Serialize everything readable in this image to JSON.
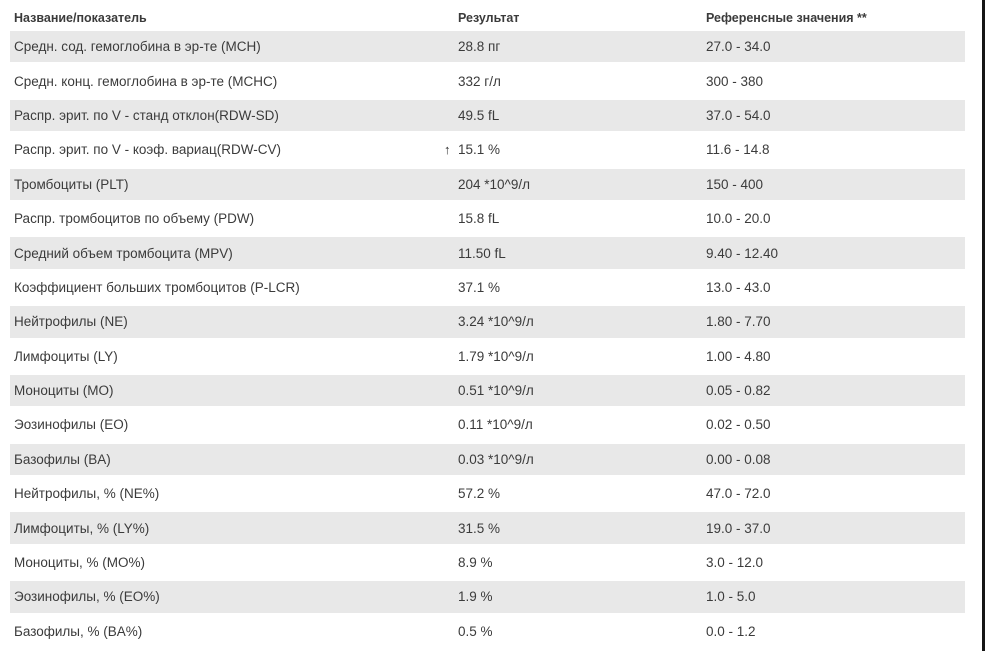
{
  "table": {
    "columns": [
      {
        "label": "Название/показатель"
      },
      {
        "label": "Результат"
      },
      {
        "label": "Референсные значения **"
      }
    ],
    "rows": [
      {
        "name": "Средн. сод. гемоглобина в эр-те (MCH)",
        "result": "28.8 пг",
        "reference": "27.0 - 34.0",
        "flag": ""
      },
      {
        "name": "Средн. конц. гемоглобина в эр-те (MCHC)",
        "result": "332 г/л",
        "reference": "300 - 380",
        "flag": ""
      },
      {
        "name": "Распр. эрит. по V - станд отклон(RDW-SD)",
        "result": "49.5 fL",
        "reference": "37.0 - 54.0",
        "flag": ""
      },
      {
        "name": "Распр. эрит. по V - коэф. вариац(RDW-CV)",
        "result": "15.1 %",
        "reference": "11.6 - 14.8",
        "flag": "↑"
      },
      {
        "name": "Тромбоциты (PLT)",
        "result": "204 *10^9/л",
        "reference": "150 - 400",
        "flag": ""
      },
      {
        "name": "Распр. тромбоцитов по объему (PDW)",
        "result": "15.8 fL",
        "reference": "10.0 - 20.0",
        "flag": ""
      },
      {
        "name": "Средний объем тромбоцита (MPV)",
        "result": "11.50 fL",
        "reference": "9.40 - 12.40",
        "flag": ""
      },
      {
        "name": "Коэффициент больших тромбоцитов (P-LCR)",
        "result": "37.1 %",
        "reference": "13.0 - 43.0",
        "flag": ""
      },
      {
        "name": "Нейтрофилы (NE)",
        "result": "3.24 *10^9/л",
        "reference": "1.80 - 7.70",
        "flag": ""
      },
      {
        "name": "Лимфоциты (LY)",
        "result": "1.79 *10^9/л",
        "reference": "1.00 - 4.80",
        "flag": ""
      },
      {
        "name": "Моноциты (MO)",
        "result": "0.51 *10^9/л",
        "reference": "0.05 - 0.82",
        "flag": ""
      },
      {
        "name": "Эозинофилы (EO)",
        "result": "0.11 *10^9/л",
        "reference": "0.02 - 0.50",
        "flag": ""
      },
      {
        "name": "Базофилы (BA)",
        "result": "0.03 *10^9/л",
        "reference": "0.00 - 0.08",
        "flag": ""
      },
      {
        "name": "Нейтрофилы, % (NE%)",
        "result": "57.2 %",
        "reference": "47.0 - 72.0",
        "flag": ""
      },
      {
        "name": "Лимфоциты, % (LY%)",
        "result": "31.5 %",
        "reference": "19.0 - 37.0",
        "flag": ""
      },
      {
        "name": "Моноциты, % (MO%)",
        "result": "8.9 %",
        "reference": "3.0 - 12.0",
        "flag": ""
      },
      {
        "name": "Эозинофилы, % (EO%)",
        "result": "1.9 %",
        "reference": "1.0 - 5.0",
        "flag": ""
      },
      {
        "name": "Базофилы, % (BA%)",
        "result": "0.5 %",
        "reference": "0.0 - 1.2",
        "flag": ""
      }
    ]
  },
  "colors": {
    "stripe": "#e8e8e8",
    "text": "#3b3b3b",
    "frame_line": "#151515"
  }
}
